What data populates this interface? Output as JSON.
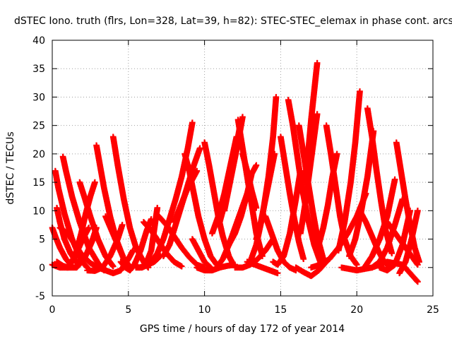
{
  "chart_data": {
    "type": "scatter",
    "title": "dSTEC Iono. truth (flrs, Lon=328, Lat=39, h=82): STEC-STEC_elemax in phase cont. arcs",
    "xlabel": "GPS time / hours of day 172 of year 2014",
    "ylabel": "dSTEC  / TECUs",
    "xlim": [
      0,
      25
    ],
    "ylim": [
      -5,
      40
    ],
    "x_ticks": [
      "0",
      "5",
      "10",
      "15",
      "20",
      "25"
    ],
    "y_ticks": [
      "-5",
      "0",
      "5",
      "10",
      "15",
      "20",
      "25",
      "30",
      "35",
      "40"
    ],
    "grid": true,
    "marker": "plus",
    "color": "#ff0000",
    "series": [
      {
        "x": [
          0.0,
          0.2,
          0.5,
          0.9,
          1.3
        ],
        "y": [
          7.0,
          5.5,
          3.5,
          1.5,
          0.2
        ]
      },
      {
        "x": [
          0.2,
          0.4,
          0.8,
          1.3,
          1.9,
          2.3
        ],
        "y": [
          17.0,
          14.0,
          9.5,
          5.0,
          1.2,
          0.0
        ]
      },
      {
        "x": [
          0.3,
          0.5,
          0.8,
          1.2,
          1.7
        ],
        "y": [
          10.5,
          8.0,
          5.0,
          2.5,
          0.5
        ]
      },
      {
        "x": [
          0.7,
          0.9,
          1.3,
          1.8,
          2.4,
          3.0,
          3.4
        ],
        "y": [
          19.5,
          17.0,
          12.5,
          8.0,
          3.5,
          0.8,
          -0.5
        ]
      },
      {
        "x": [
          0.0,
          0.5,
          1.0,
          1.5,
          2.0,
          2.4
        ],
        "y": [
          0.5,
          0.0,
          0.0,
          2.0,
          5.0,
          7.0
        ]
      },
      {
        "x": [
          0.3,
          0.7,
          1.0,
          1.3,
          1.6,
          1.9,
          2.2,
          2.5,
          2.8
        ],
        "y": [
          1.0,
          0.3,
          0.0,
          1.0,
          3.0,
          6.0,
          9.5,
          12.5,
          15.0
        ]
      },
      {
        "x": [
          0.5,
          1.0,
          1.5,
          2.0,
          2.5,
          3.0
        ],
        "y": [
          7.0,
          6.0,
          4.0,
          2.0,
          0.8,
          0.0
        ]
      },
      {
        "x": [
          1.8,
          2.1,
          2.5,
          3.0,
          3.5,
          4.0
        ],
        "y": [
          15.0,
          12.5,
          9.0,
          5.0,
          2.0,
          0.2
        ]
      },
      {
        "x": [
          1.0,
          1.6,
          2.1,
          2.6,
          2.9
        ],
        "y": [
          0.0,
          0.0,
          1.5,
          4.5,
          7.0
        ]
      },
      {
        "x": [
          2.9,
          3.1,
          3.4,
          3.8,
          4.2,
          4.7,
          5.1
        ],
        "y": [
          21.5,
          18.5,
          14.0,
          9.0,
          5.0,
          1.5,
          0.0
        ]
      },
      {
        "x": [
          2.3,
          2.8,
          3.3,
          3.8,
          4.3,
          4.6
        ],
        "y": [
          -0.5,
          -0.6,
          0.0,
          2.0,
          5.0,
          7.5
        ]
      },
      {
        "x": [
          3.5,
          3.9,
          4.3,
          4.7,
          5.0
        ],
        "y": [
          9.0,
          6.5,
          4.0,
          1.5,
          0.5
        ]
      },
      {
        "x": [
          4.0,
          4.3,
          4.7,
          5.1,
          5.5,
          6.0,
          6.3
        ],
        "y": [
          23.0,
          18.0,
          12.0,
          7.0,
          3.5,
          1.0,
          0.0
        ]
      },
      {
        "x": [
          3.0,
          3.5,
          4.0,
          4.5,
          5.0,
          5.3
        ],
        "y": [
          0.0,
          -0.5,
          -1.0,
          -0.5,
          1.5,
          3.0
        ]
      },
      {
        "x": [
          4.5,
          4.8,
          5.1,
          5.4,
          5.8,
          6.2,
          6.5
        ],
        "y": [
          1.0,
          0.0,
          -0.5,
          0.5,
          3.0,
          6.5,
          8.5
        ]
      },
      {
        "x": [
          5.3,
          5.7,
          6.1,
          6.5,
          6.9
        ],
        "y": [
          0.5,
          0.0,
          0.3,
          3.0,
          10.5
        ]
      },
      {
        "x": [
          5.5,
          5.9,
          6.3,
          6.7,
          7.1
        ],
        "y": [
          0.0,
          0.0,
          0.5,
          1.0,
          2.0
        ]
      },
      {
        "x": [
          6.5,
          6.9,
          7.3,
          7.7,
          8.1,
          8.5,
          8.9,
          9.2
        ],
        "y": [
          1.0,
          2.5,
          5.0,
          8.5,
          12.0,
          16.0,
          21.0,
          25.5
        ]
      },
      {
        "x": [
          7.3,
          7.7,
          8.1,
          8.5,
          8.9,
          9.3,
          9.7
        ],
        "y": [
          2.0,
          4.0,
          7.5,
          11.0,
          14.5,
          18.0,
          21.0
        ]
      },
      {
        "x": [
          7.0,
          7.5,
          8.0,
          8.5,
          9.0,
          9.5,
          10.0
        ],
        "y": [
          9.0,
          7.5,
          5.5,
          3.5,
          1.8,
          0.5,
          0.0
        ]
      },
      {
        "x": [
          6.0,
          6.5,
          7.0,
          7.5,
          8.0,
          8.5
        ],
        "y": [
          8.0,
          6.5,
          4.5,
          2.5,
          1.0,
          0.2
        ]
      },
      {
        "x": [
          8.0,
          8.3,
          8.6,
          8.9,
          9.2,
          9.5
        ],
        "y": [
          8.0,
          10.0,
          12.0,
          14.0,
          15.5,
          17.0
        ]
      },
      {
        "x": [
          8.7,
          9.0,
          9.3,
          9.6,
          10.0,
          10.4,
          10.8
        ],
        "y": [
          20.0,
          17.0,
          13.0,
          9.0,
          5.0,
          2.0,
          0.5
        ]
      },
      {
        "x": [
          9.2,
          9.6,
          10.0,
          10.4
        ],
        "y": [
          5.0,
          3.0,
          1.0,
          0.0
        ]
      },
      {
        "x": [
          10.0,
          10.3,
          10.6,
          10.9,
          11.2,
          11.6,
          11.9
        ],
        "y": [
          22.0,
          18.0,
          13.5,
          9.0,
          5.5,
          2.0,
          0.5
        ]
      },
      {
        "x": [
          9.5,
          10.0,
          10.5,
          11.0,
          11.5,
          12.0
        ],
        "y": [
          0.0,
          -0.5,
          -0.5,
          0.0,
          0.3,
          0.5
        ]
      },
      {
        "x": [
          10.5,
          10.9,
          11.3,
          11.7,
          12.1
        ],
        "y": [
          6.0,
          9.0,
          13.0,
          18.0,
          23.0
        ]
      },
      {
        "x": [
          11.0,
          11.4,
          11.8,
          12.1,
          12.4
        ],
        "y": [
          8.0,
          12.0,
          17.0,
          21.5,
          26.0
        ]
      },
      {
        "x": [
          11.3,
          11.6,
          11.9,
          12.2,
          12.5
        ],
        "y": [
          10.0,
          14.0,
          18.0,
          22.0,
          26.5
        ]
      },
      {
        "x": [
          12.2,
          12.5,
          12.8,
          13.1,
          13.4,
          13.8
        ],
        "y": [
          26.0,
          21.0,
          16.0,
          11.0,
          6.0,
          2.0
        ]
      },
      {
        "x": [
          12.5,
          12.8,
          13.1,
          13.4
        ],
        "y": [
          20.0,
          17.0,
          13.5,
          10.5
        ]
      },
      {
        "x": [
          11.6,
          12.0,
          12.4,
          12.8,
          13.1,
          13.4
        ],
        "y": [
          4.0,
          6.0,
          9.0,
          13.0,
          16.5,
          18.0
        ]
      },
      {
        "x": [
          10.8,
          11.2,
          11.6,
          12.0,
          12.4,
          12.8
        ],
        "y": [
          0.0,
          1.5,
          4.0,
          7.0,
          10.0,
          13.0
        ]
      },
      {
        "x": [
          12.0,
          12.5,
          13.0,
          13.5,
          14.0,
          14.5
        ],
        "y": [
          0.0,
          0.0,
          0.5,
          1.5,
          3.0,
          5.0
        ]
      },
      {
        "x": [
          13.0,
          13.4,
          13.8,
          14.2,
          14.5,
          14.7
        ],
        "y": [
          1.0,
          4.0,
          9.0,
          16.0,
          23.0,
          30.0
        ]
      },
      {
        "x": [
          13.4,
          13.7,
          14.0,
          14.3,
          14.6
        ],
        "y": [
          5.0,
          8.0,
          12.0,
          16.0,
          20.0
        ]
      },
      {
        "x": [
          12.8,
          13.3,
          13.8,
          14.3,
          14.8
        ],
        "y": [
          1.0,
          0.5,
          0.0,
          -0.5,
          -1.0
        ]
      },
      {
        "x": [
          14.0,
          14.4,
          14.8,
          15.2,
          15.6,
          16.0
        ],
        "y": [
          9.0,
          6.0,
          3.0,
          1.0,
          0.0,
          -0.5
        ]
      },
      {
        "x": [
          15.0,
          15.3,
          15.6,
          15.9,
          16.2,
          16.5
        ],
        "y": [
          23.0,
          18.0,
          13.0,
          8.5,
          4.5,
          1.5
        ]
      },
      {
        "x": [
          15.5,
          15.8,
          16.1,
          16.4,
          16.8,
          17.2,
          17.6
        ],
        "y": [
          29.5,
          25.0,
          19.5,
          14.0,
          8.5,
          4.0,
          1.0
        ]
      },
      {
        "x": [
          14.5,
          14.8,
          15.2,
          15.6,
          16.0,
          16.3
        ],
        "y": [
          1.0,
          0.5,
          2.0,
          6.0,
          12.0,
          17.0
        ]
      },
      {
        "x": [
          16.2,
          16.5,
          16.8,
          17.1,
          17.4,
          17.8
        ],
        "y": [
          25.0,
          20.0,
          15.0,
          10.0,
          5.5,
          1.5
        ]
      },
      {
        "x": [
          16.3,
          16.6,
          16.9,
          17.2,
          17.4
        ],
        "y": [
          6.0,
          11.0,
          17.0,
          23.0,
          27.0
        ]
      },
      {
        "x": [
          16.6,
          16.8,
          17.0,
          17.2,
          17.4
        ],
        "y": [
          15.0,
          20.0,
          26.0,
          31.0,
          36.0
        ]
      },
      {
        "x": [
          16.0,
          16.5,
          17.0,
          17.5,
          18.0
        ],
        "y": [
          0.0,
          -0.8,
          -1.5,
          -0.5,
          1.0
        ]
      },
      {
        "x": [
          17.5,
          17.8,
          18.1,
          18.4,
          18.7
        ],
        "y": [
          4.0,
          7.0,
          11.0,
          16.0,
          20.0
        ]
      },
      {
        "x": [
          18.0,
          18.3,
          18.6,
          18.9,
          19.2,
          19.6,
          20.0
        ],
        "y": [
          25.0,
          20.0,
          14.5,
          9.0,
          5.0,
          2.0,
          0.5
        ]
      },
      {
        "x": [
          17.0,
          17.6,
          18.2,
          18.8,
          19.4,
          20.0,
          20.6
        ],
        "y": [
          0.0,
          0.5,
          1.5,
          3.5,
          6.0,
          9.0,
          13.0
        ]
      },
      {
        "x": [
          18.8,
          19.2,
          19.6,
          19.9,
          20.2
        ],
        "y": [
          3.0,
          8.0,
          15.0,
          22.0,
          31.0
        ]
      },
      {
        "x": [
          19.5,
          19.9,
          20.3,
          20.7,
          21.1
        ],
        "y": [
          2.0,
          5.0,
          10.0,
          16.0,
          24.0
        ]
      },
      {
        "x": [
          20.7,
          21.0,
          21.3,
          21.6,
          21.9,
          22.3
        ],
        "y": [
          28.0,
          23.0,
          17.0,
          11.5,
          6.5,
          2.5
        ]
      },
      {
        "x": [
          20.2,
          20.6,
          21.0,
          21.4,
          21.8,
          22.2
        ],
        "y": [
          10.0,
          8.0,
          5.5,
          3.0,
          1.0,
          0.0
        ]
      },
      {
        "x": [
          20.5,
          21.0,
          21.5,
          22.0,
          22.5
        ],
        "y": [
          0.0,
          2.0,
          5.0,
          9.0,
          15.5
        ]
      },
      {
        "x": [
          21.0,
          21.5,
          22.0,
          22.5,
          23.0
        ],
        "y": [
          0.0,
          1.0,
          3.5,
          7.5,
          12.0
        ]
      },
      {
        "x": [
          21.5,
          22.0,
          22.5,
          23.0,
          23.5
        ],
        "y": [
          0.0,
          -0.5,
          0.5,
          4.0,
          10.0
        ]
      },
      {
        "x": [
          22.6,
          22.9,
          23.2,
          23.5,
          23.8,
          24.1
        ],
        "y": [
          22.0,
          17.0,
          12.0,
          7.5,
          3.5,
          1.0
        ]
      },
      {
        "x": [
          22.0,
          22.4,
          22.8,
          23.2,
          23.6,
          24.0
        ],
        "y": [
          8.0,
          6.5,
          5.0,
          3.5,
          2.0,
          0.5
        ]
      },
      {
        "x": [
          19.0,
          20.0,
          21.0,
          22.0,
          23.0,
          24.0
        ],
        "y": [
          0.0,
          -0.5,
          0.0,
          1.0,
          0.5,
          -2.5
        ]
      },
      {
        "x": [
          22.8,
          23.2,
          23.6,
          24.0
        ],
        "y": [
          -1.0,
          1.0,
          5.0,
          10.0
        ]
      }
    ]
  }
}
